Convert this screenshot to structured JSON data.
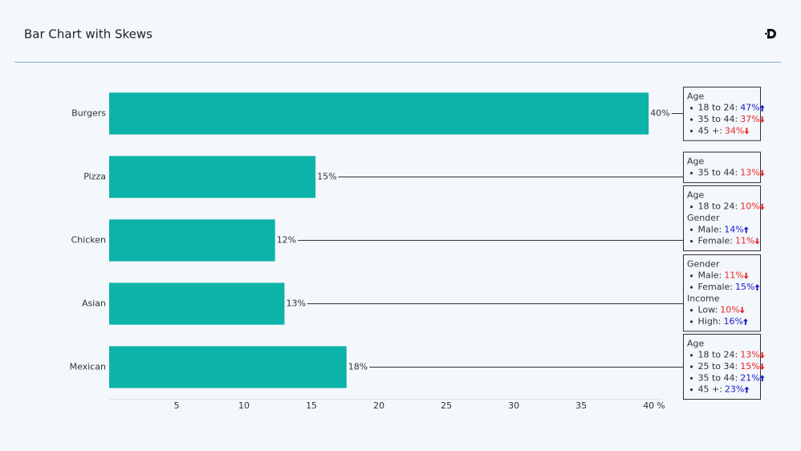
{
  "chart_data": {
    "type": "bar",
    "orientation": "horizontal",
    "title": "Bar Chart with Skews",
    "categories": [
      "Burgers",
      "Pizza",
      "Chicken",
      "Asian",
      "Mexican"
    ],
    "values": [
      40,
      15.3,
      12.3,
      13,
      17.6
    ],
    "value_labels": [
      "40%",
      "15%",
      "12%",
      "13%",
      "18%"
    ],
    "color": "#0bb3a9",
    "xlim": [
      0,
      41
    ],
    "xticks": [
      5,
      10,
      15,
      20,
      25,
      30,
      35,
      40
    ],
    "xlabel": "%",
    "up_color": "#1a1acc",
    "down_color": "#e8262a",
    "annotations": [
      {
        "groups": [
          {
            "name": "Age",
            "items": [
              {
                "label": "18 to 24:",
                "value": "47%",
                "direction": "up"
              },
              {
                "label": "35 to 44:",
                "value": "37%",
                "direction": "down"
              },
              {
                "label": "45 +:",
                "value": "34%",
                "direction": "down"
              }
            ]
          }
        ]
      },
      {
        "groups": [
          {
            "name": "Age",
            "items": [
              {
                "label": "35 to 44:",
                "value": "13%",
                "direction": "down"
              }
            ]
          }
        ]
      },
      {
        "groups": [
          {
            "name": "Age",
            "items": [
              {
                "label": "18 to 24:",
                "value": "10%",
                "direction": "down"
              }
            ]
          },
          {
            "name": "Gender",
            "items": [
              {
                "label": "Male:",
                "value": "14%",
                "direction": "up"
              },
              {
                "label": "Female:",
                "value": "11%",
                "direction": "down"
              }
            ]
          }
        ]
      },
      {
        "groups": [
          {
            "name": "Gender",
            "items": [
              {
                "label": "Male:",
                "value": "11%",
                "direction": "down"
              },
              {
                "label": "Female:",
                "value": "15%",
                "direction": "up"
              }
            ]
          },
          {
            "name": "Income",
            "items": [
              {
                "label": "Low:",
                "value": "10%",
                "direction": "down"
              },
              {
                "label": "High:",
                "value": "16%",
                "direction": "up"
              }
            ]
          }
        ]
      },
      {
        "groups": [
          {
            "name": "Age",
            "items": [
              {
                "label": "18 to 24:",
                "value": "13%",
                "direction": "down"
              },
              {
                "label": "25 to 34:",
                "value": "15%",
                "direction": "down"
              },
              {
                "label": "35 to 44:",
                "value": "21%",
                "direction": "up"
              },
              {
                "label": "45 +:",
                "value": "23%",
                "direction": "up"
              }
            ]
          }
        ]
      }
    ]
  }
}
